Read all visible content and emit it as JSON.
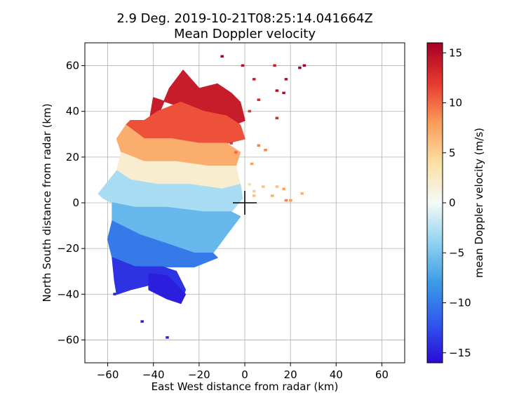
{
  "chart_data": {
    "type": "heatmap",
    "title_line1": "2.9 Deg. 2019-10-21T08:25:14.041664Z",
    "title_line2": "Mean Doppler velocity",
    "xlabel": "East West distance from radar (km)",
    "ylabel": "North South distance from radar (km)",
    "xlim": [
      -70,
      70
    ],
    "ylim": [
      -70,
      70
    ],
    "xticks": [
      -60,
      -40,
      -20,
      0,
      20,
      40,
      60
    ],
    "yticks": [
      -60,
      -40,
      -20,
      0,
      20,
      40,
      60
    ],
    "xtick_labels": [
      "−60",
      "−40",
      "−20",
      "0",
      "20",
      "40",
      "60"
    ],
    "ytick_labels": [
      "−60",
      "−40",
      "−20",
      "0",
      "20",
      "40",
      "60"
    ],
    "grid": true,
    "radar_location": [
      0,
      0
    ],
    "colorbar": {
      "label": "mean Doppler velocity (m/s)",
      "range": [
        -16,
        16
      ],
      "ticks": [
        -15,
        -10,
        -5,
        0,
        5,
        10,
        15
      ],
      "tick_labels": [
        "−15",
        "−10",
        "−5",
        "0",
        "5",
        "10",
        "15"
      ],
      "colormap": "RdYlBu_r",
      "stops": [
        "#2a0ad6",
        "#2f59ee",
        "#3c9be6",
        "#8fd2f0",
        "#f4faf8",
        "#fbe0a4",
        "#fb9c5a",
        "#e8382e",
        "#a50026"
      ]
    },
    "echo_regions": [
      {
        "velocity": 14,
        "polygon": [
          [
            -27,
            58
          ],
          [
            -20,
            50
          ],
          [
            -12,
            52
          ],
          [
            -6,
            48
          ],
          [
            -2,
            44
          ],
          [
            0,
            36
          ],
          [
            -5,
            34
          ],
          [
            -18,
            38
          ],
          [
            -28,
            42
          ],
          [
            -40,
            46
          ],
          [
            -42,
            34
          ],
          [
            -38,
            38
          ],
          [
            -33,
            50
          ]
        ]
      },
      {
        "velocity": 11,
        "polygon": [
          [
            -44,
            36
          ],
          [
            -38,
            40
          ],
          [
            -28,
            44
          ],
          [
            -18,
            40
          ],
          [
            -8,
            38
          ],
          [
            -2,
            34
          ],
          [
            0,
            28
          ],
          [
            -8,
            26
          ],
          [
            -20,
            26
          ],
          [
            -32,
            28
          ],
          [
            -44,
            28
          ],
          [
            -52,
            34
          ],
          [
            -50,
            36
          ]
        ]
      },
      {
        "velocity": 7,
        "polygon": [
          [
            -52,
            34
          ],
          [
            -44,
            28
          ],
          [
            -32,
            28
          ],
          [
            -20,
            26
          ],
          [
            -8,
            26
          ],
          [
            -2,
            22
          ],
          [
            -4,
            16
          ],
          [
            -16,
            16
          ],
          [
            -30,
            18
          ],
          [
            -44,
            18
          ],
          [
            -54,
            22
          ],
          [
            -56,
            28
          ]
        ]
      },
      {
        "velocity": 2,
        "polygon": [
          [
            -54,
            22
          ],
          [
            -44,
            18
          ],
          [
            -30,
            18
          ],
          [
            -16,
            16
          ],
          [
            -4,
            16
          ],
          [
            -2,
            8
          ],
          [
            -10,
            6
          ],
          [
            -24,
            8
          ],
          [
            -38,
            8
          ],
          [
            -50,
            10
          ],
          [
            -56,
            14
          ]
        ]
      },
      {
        "velocity": -3,
        "polygon": [
          [
            -64,
            4
          ],
          [
            -56,
            14
          ],
          [
            -50,
            10
          ],
          [
            -38,
            8
          ],
          [
            -24,
            8
          ],
          [
            -10,
            6
          ],
          [
            -2,
            8
          ],
          [
            -1,
            2
          ],
          [
            -6,
            -4
          ],
          [
            -18,
            -4
          ],
          [
            -34,
            -2
          ],
          [
            -48,
            -2
          ],
          [
            -58,
            0
          ],
          [
            -62,
            2
          ]
        ]
      },
      {
        "velocity": -6,
        "polygon": [
          [
            -58,
            0
          ],
          [
            -48,
            -2
          ],
          [
            -34,
            -2
          ],
          [
            -18,
            -4
          ],
          [
            -6,
            -4
          ],
          [
            -2,
            -6
          ],
          [
            -8,
            -14
          ],
          [
            -14,
            -22
          ],
          [
            -22,
            -22
          ],
          [
            -34,
            -18
          ],
          [
            -46,
            -14
          ],
          [
            -58,
            -8
          ],
          [
            -58,
            -4
          ]
        ]
      },
      {
        "velocity": -10,
        "polygon": [
          [
            -58,
            -8
          ],
          [
            -46,
            -14
          ],
          [
            -34,
            -18
          ],
          [
            -22,
            -22
          ],
          [
            -14,
            -22
          ],
          [
            -12,
            -24
          ],
          [
            -22,
            -28
          ],
          [
            -36,
            -28
          ],
          [
            -48,
            -28
          ],
          [
            -58,
            -24
          ],
          [
            -60,
            -16
          ]
        ]
      },
      {
        "velocity": -14,
        "polygon": [
          [
            -58,
            -24
          ],
          [
            -48,
            -28
          ],
          [
            -36,
            -28
          ],
          [
            -30,
            -30
          ],
          [
            -26,
            -38
          ],
          [
            -28,
            -44
          ],
          [
            -36,
            -40
          ],
          [
            -42,
            -36
          ],
          [
            -50,
            -38
          ],
          [
            -56,
            -40
          ],
          [
            -57,
            -34
          ]
        ]
      },
      {
        "velocity": -15,
        "polygon": [
          [
            -42,
            -31
          ],
          [
            -34,
            -32
          ],
          [
            -30,
            -36
          ],
          [
            -26,
            -40
          ],
          [
            -28,
            -44
          ],
          [
            -34,
            -42
          ],
          [
            -42,
            -38
          ]
        ]
      }
    ],
    "speckles": [
      {
        "x": -10,
        "y": 64,
        "velocity": 16
      },
      {
        "x": -1,
        "y": 60,
        "velocity": 15
      },
      {
        "x": 4,
        "y": 54,
        "velocity": 14
      },
      {
        "x": 14,
        "y": 49,
        "velocity": 15
      },
      {
        "x": 17,
        "y": 48,
        "velocity": 15
      },
      {
        "x": 24,
        "y": 59,
        "velocity": 16
      },
      {
        "x": 26,
        "y": 60,
        "velocity": 16
      },
      {
        "x": 13,
        "y": 60,
        "velocity": 14
      },
      {
        "x": 18,
        "y": 54,
        "velocity": 15
      },
      {
        "x": 14,
        "y": 37,
        "velocity": 13
      },
      {
        "x": 2,
        "y": 40,
        "velocity": 12
      },
      {
        "x": 6,
        "y": 45,
        "velocity": 13
      },
      {
        "x": 3,
        "y": 17,
        "velocity": 8
      },
      {
        "x": 6,
        "y": 25,
        "velocity": 9
      },
      {
        "x": 9,
        "y": 23,
        "velocity": 9
      },
      {
        "x": 2,
        "y": 8,
        "velocity": 4
      },
      {
        "x": 4,
        "y": 5,
        "velocity": 5
      },
      {
        "x": 8,
        "y": 7,
        "velocity": 6
      },
      {
        "x": 12,
        "y": 3,
        "velocity": 7
      },
      {
        "x": 14,
        "y": 7,
        "velocity": 6
      },
      {
        "x": 17,
        "y": 6,
        "velocity": 8
      },
      {
        "x": 18,
        "y": 1,
        "velocity": 9
      },
      {
        "x": 20,
        "y": 1,
        "velocity": 8
      },
      {
        "x": 25,
        "y": 4,
        "velocity": 7
      },
      {
        "x": -6,
        "y": 26,
        "velocity": 12
      },
      {
        "x": -4,
        "y": 22,
        "velocity": 10
      },
      {
        "x": 4,
        "y": 3,
        "velocity": 6
      },
      {
        "x": -45,
        "y": -52,
        "velocity": -15
      },
      {
        "x": -34,
        "y": -59,
        "velocity": -15
      },
      {
        "x": -57,
        "y": -40,
        "velocity": -15
      }
    ]
  }
}
